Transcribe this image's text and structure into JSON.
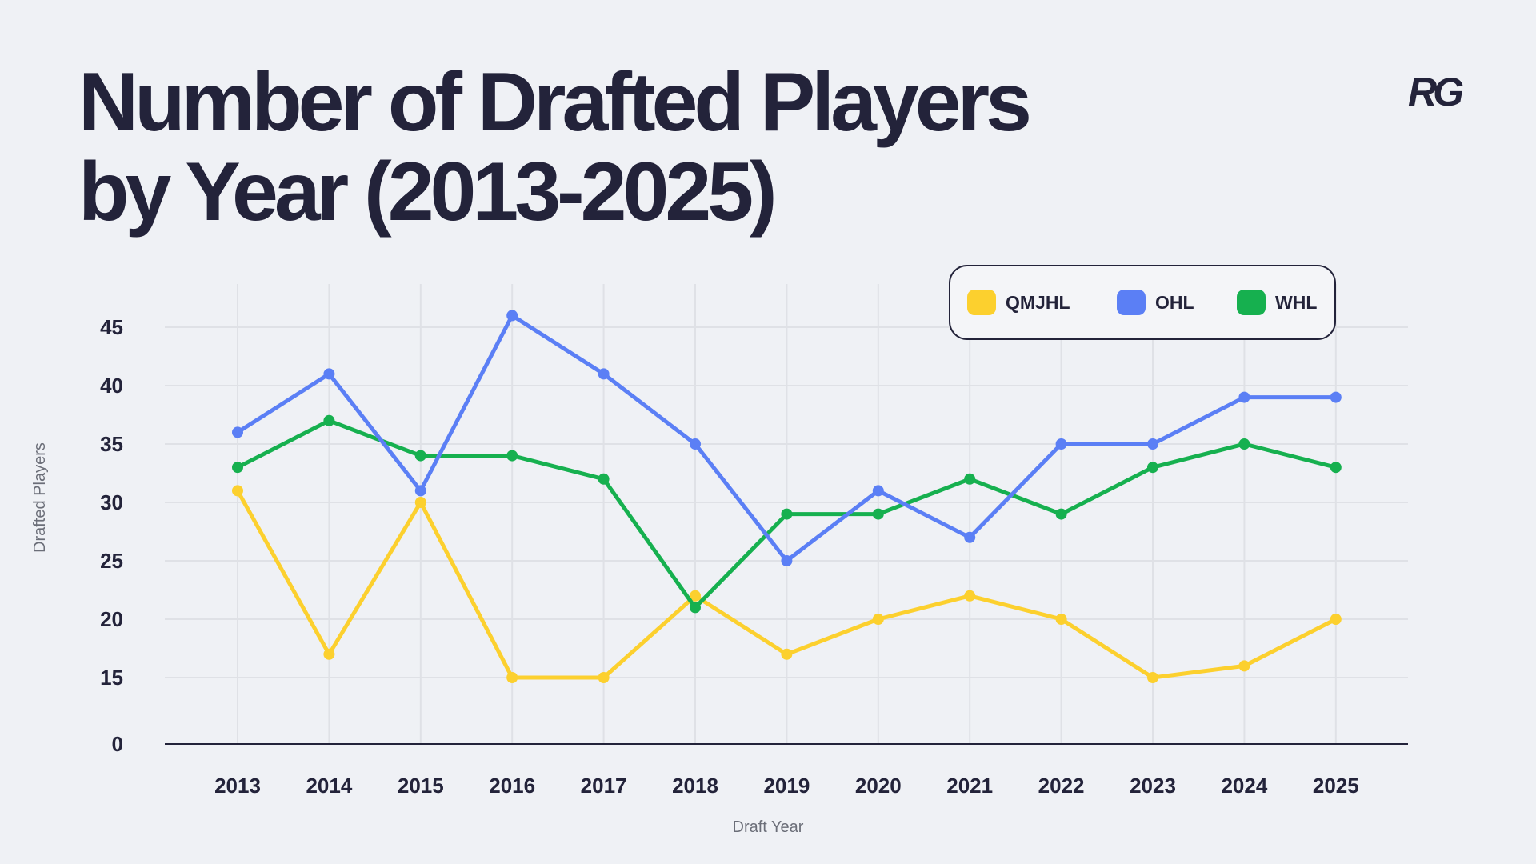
{
  "header": {
    "title_line1": "Number of Drafted Players",
    "title_line2": "by Year (2013-2025)",
    "logo": "RG"
  },
  "chart_data": {
    "type": "line",
    "title": "Number of Drafted Players by Year (2013-2025)",
    "xlabel": "Draft Year",
    "ylabel": "Drafted Players",
    "x": [
      "2013",
      "2014",
      "2015",
      "2016",
      "2017",
      "2018",
      "2019",
      "2020",
      "2021",
      "2022",
      "2023",
      "2024",
      "2025"
    ],
    "yticks": [
      0,
      15,
      20,
      25,
      30,
      35,
      40,
      45
    ],
    "ylim": [
      0,
      45
    ],
    "grid": true,
    "legend_position": "top-right",
    "series": [
      {
        "name": "QMJHL",
        "color": "#fcd02e",
        "values": [
          31,
          17,
          30,
          15,
          15,
          22,
          17,
          20,
          22,
          20,
          15,
          16,
          20
        ]
      },
      {
        "name": "OHL",
        "color": "#5b7ff5",
        "values": [
          36,
          41,
          31,
          46,
          41,
          35,
          25,
          31,
          27,
          35,
          35,
          39,
          39
        ]
      },
      {
        "name": "WHL",
        "color": "#16b04f",
        "values": [
          33,
          37,
          34,
          34,
          32,
          21,
          29,
          29,
          32,
          29,
          33,
          35,
          33
        ]
      }
    ]
  }
}
